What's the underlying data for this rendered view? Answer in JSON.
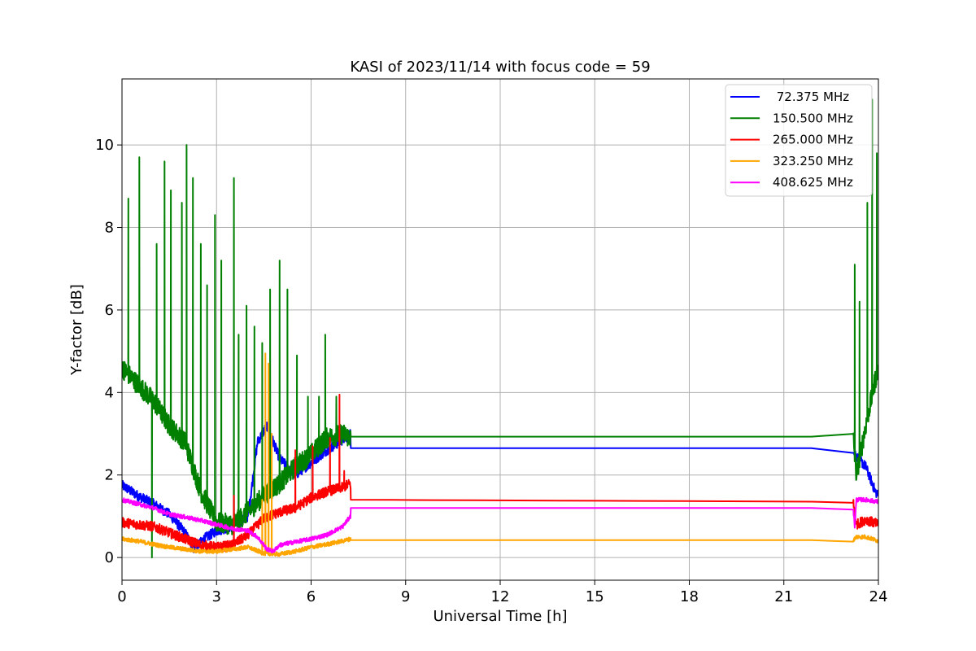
{
  "chart_data": {
    "type": "line",
    "title": "KASI of 2023/11/14 with focus code = 59",
    "xlabel": "Universal Time [h]",
    "ylabel": "Y-factor [dB]",
    "xlim": [
      0,
      24
    ],
    "ylim": [
      -0.55,
      11.6
    ],
    "xticks": [
      0,
      3,
      6,
      9,
      12,
      15,
      18,
      21,
      24
    ],
    "yticks": [
      0,
      2,
      4,
      6,
      8,
      10
    ],
    "grid": true,
    "legend_position": "top-right",
    "series": [
      {
        "name": " 72.375 MHz",
        "color": "#0000ff",
        "noise": 0.12,
        "points": [
          [
            0,
            1.75
          ],
          [
            0.5,
            1.5
          ],
          [
            1,
            1.3
          ],
          [
            1.5,
            1.05
          ],
          [
            2,
            0.6
          ],
          [
            2.3,
            0.2
          ],
          [
            2.6,
            0.45
          ],
          [
            3,
            0.65
          ],
          [
            3.5,
            0.75
          ],
          [
            4,
            1.0
          ],
          [
            4.3,
            2.8
          ],
          [
            4.6,
            3.2
          ],
          [
            5,
            2.4
          ],
          [
            5.5,
            2.0
          ],
          [
            6,
            2.3
          ],
          [
            6.5,
            2.6
          ],
          [
            7,
            2.85
          ],
          [
            7.25,
            3.0
          ],
          [
            7.26,
            2.65
          ],
          [
            23.2,
            2.65
          ],
          [
            23.3,
            2.45
          ],
          [
            23.6,
            2.2
          ],
          [
            23.9,
            1.6
          ],
          [
            24,
            1.5
          ]
        ]
      },
      {
        "name": "150.500 MHz",
        "color": "#008000",
        "noise": 0.25,
        "points": [
          [
            0,
            4.6
          ],
          [
            0.5,
            4.2
          ],
          [
            1,
            3.8
          ],
          [
            1.5,
            3.2
          ],
          [
            2,
            2.8
          ],
          [
            2.5,
            1.6
          ],
          [
            3,
            0.85
          ],
          [
            3.5,
            0.8
          ],
          [
            4,
            1.1
          ],
          [
            4.5,
            1.5
          ],
          [
            5,
            1.8
          ],
          [
            5.5,
            2.2
          ],
          [
            6,
            2.5
          ],
          [
            6.5,
            2.9
          ],
          [
            7,
            3.0
          ],
          [
            7.25,
            2.9
          ],
          [
            7.26,
            2.93
          ],
          [
            23.2,
            2.93
          ],
          [
            23.3,
            2.0
          ],
          [
            23.6,
            3.2
          ],
          [
            23.9,
            4.3
          ],
          [
            24,
            4.6
          ]
        ],
        "spikes": [
          [
            0.2,
            8.7
          ],
          [
            0.55,
            9.7
          ],
          [
            0.95,
            0.0
          ],
          [
            1.1,
            7.6
          ],
          [
            1.35,
            9.6
          ],
          [
            1.55,
            8.9
          ],
          [
            1.9,
            8.6
          ],
          [
            2.05,
            10.0
          ],
          [
            2.25,
            9.2
          ],
          [
            2.5,
            7.6
          ],
          [
            2.7,
            6.6
          ],
          [
            2.95,
            8.3
          ],
          [
            3.15,
            7.2
          ],
          [
            3.55,
            9.2
          ],
          [
            3.7,
            5.4
          ],
          [
            3.95,
            6.1
          ],
          [
            4.2,
            5.6
          ],
          [
            4.45,
            5.2
          ],
          [
            4.7,
            6.5
          ],
          [
            5.0,
            7.2
          ],
          [
            5.25,
            6.5
          ],
          [
            5.55,
            4.9
          ],
          [
            5.9,
            3.9
          ],
          [
            6.25,
            3.9
          ],
          [
            6.45,
            5.4
          ],
          [
            6.8,
            3.9
          ],
          [
            23.25,
            7.1
          ],
          [
            23.4,
            6.2
          ],
          [
            23.65,
            8.6
          ],
          [
            23.8,
            11.1
          ],
          [
            23.95,
            9.8
          ]
        ]
      },
      {
        "name": "265.000 MHz",
        "color": "#ff0000",
        "noise": 0.12,
        "points": [
          [
            0,
            0.85
          ],
          [
            0.5,
            0.8
          ],
          [
            1,
            0.75
          ],
          [
            1.5,
            0.6
          ],
          [
            2,
            0.45
          ],
          [
            2.5,
            0.3
          ],
          [
            3,
            0.25
          ],
          [
            3.5,
            0.3
          ],
          [
            4,
            0.55
          ],
          [
            4.5,
            0.95
          ],
          [
            5,
            1.1
          ],
          [
            5.5,
            1.2
          ],
          [
            6,
            1.45
          ],
          [
            6.5,
            1.6
          ],
          [
            7,
            1.7
          ],
          [
            7.25,
            1.8
          ],
          [
            7.26,
            1.4
          ],
          [
            23.2,
            1.35
          ],
          [
            23.3,
            0.8
          ],
          [
            23.6,
            0.92
          ],
          [
            24,
            0.8
          ]
        ],
        "spikes": [
          [
            3.55,
            1.5
          ],
          [
            5.5,
            2.6
          ],
          [
            6.05,
            2.7
          ],
          [
            6.6,
            2.9
          ],
          [
            6.9,
            3.95
          ],
          [
            7.05,
            2.1
          ]
        ]
      },
      {
        "name": "323.250 MHz",
        "color": "#ffa500",
        "noise": 0.05,
        "points": [
          [
            0,
            0.45
          ],
          [
            0.5,
            0.4
          ],
          [
            1,
            0.32
          ],
          [
            1.5,
            0.25
          ],
          [
            2,
            0.2
          ],
          [
            2.5,
            0.15
          ],
          [
            3,
            0.15
          ],
          [
            3.5,
            0.2
          ],
          [
            4,
            0.25
          ],
          [
            4.5,
            0.1
          ],
          [
            5,
            0.08
          ],
          [
            5.5,
            0.15
          ],
          [
            6,
            0.25
          ],
          [
            6.5,
            0.32
          ],
          [
            7,
            0.4
          ],
          [
            7.25,
            0.45
          ],
          [
            7.26,
            0.42
          ],
          [
            23.2,
            0.42
          ],
          [
            23.3,
            0.5
          ],
          [
            23.6,
            0.5
          ],
          [
            24,
            0.4
          ]
        ],
        "spikes": [
          [
            4.45,
            1.4
          ],
          [
            4.55,
            4.95
          ],
          [
            4.65,
            4.7
          ],
          [
            4.75,
            3.0
          ]
        ]
      },
      {
        "name": "408.625 MHz",
        "color": "#ff00ff",
        "noise": 0.05,
        "points": [
          [
            0,
            1.4
          ],
          [
            0.5,
            1.3
          ],
          [
            1,
            1.2
          ],
          [
            1.5,
            1.05
          ],
          [
            2,
            0.98
          ],
          [
            2.5,
            0.9
          ],
          [
            3,
            0.8
          ],
          [
            3.5,
            0.7
          ],
          [
            4,
            0.65
          ],
          [
            4.3,
            0.5
          ],
          [
            4.6,
            0.2
          ],
          [
            4.8,
            0.15
          ],
          [
            5,
            0.3
          ],
          [
            5.5,
            0.38
          ],
          [
            6,
            0.45
          ],
          [
            6.5,
            0.55
          ],
          [
            7,
            0.75
          ],
          [
            7.25,
            1.0
          ],
          [
            7.26,
            1.2
          ],
          [
            23.2,
            1.2
          ],
          [
            23.25,
            0.75
          ],
          [
            23.3,
            1.4
          ],
          [
            23.6,
            1.4
          ],
          [
            24,
            1.35
          ]
        ]
      }
    ]
  }
}
